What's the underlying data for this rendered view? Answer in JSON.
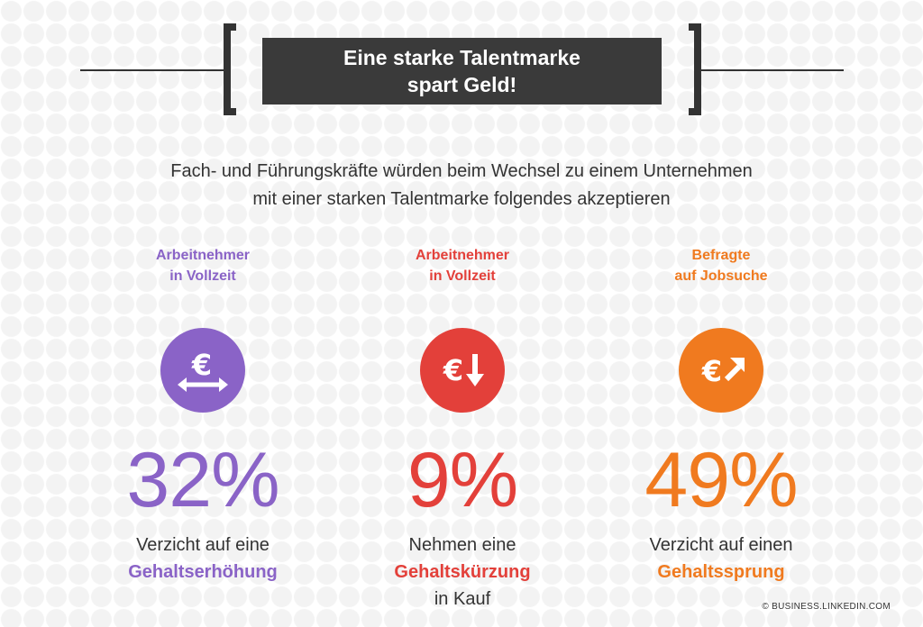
{
  "title": {
    "line1": "Eine starke Talentmarke",
    "line2": "spart Geld!"
  },
  "subtitle": {
    "line1": "Fach- und Führungskräfte würden beim Wechsel zu einem Unternehmen",
    "line2": "mit einer starken Talentmarke folgendes akzeptieren"
  },
  "stats": [
    {
      "category_line1": "Arbeitnehmer",
      "category_line2": "in Vollzeit",
      "icon": "euro-double-arrow-icon",
      "value": "32%",
      "desc_line1": "Verzicht auf eine",
      "desc_bold": "Gehaltserhöhung",
      "desc_line3": "",
      "color": "#8a63c7"
    },
    {
      "category_line1": "Arbeitnehmer",
      "category_line2": "in Vollzeit",
      "icon": "euro-down-arrow-icon",
      "value": "9%",
      "desc_line1": "Nehmen eine",
      "desc_bold": "Gehaltskürzung",
      "desc_line3": "in Kauf",
      "color": "#e3403a"
    },
    {
      "category_line1": "Befragte",
      "category_line2": "auf Jobsuche",
      "icon": "euro-up-right-arrow-icon",
      "value": "49%",
      "desc_line1": "Verzicht auf einen",
      "desc_bold": "Gehaltssprung",
      "desc_line3": "",
      "color": "#f07a1f"
    }
  ],
  "footer": "© BUSINESS.LINKEDIN.COM"
}
